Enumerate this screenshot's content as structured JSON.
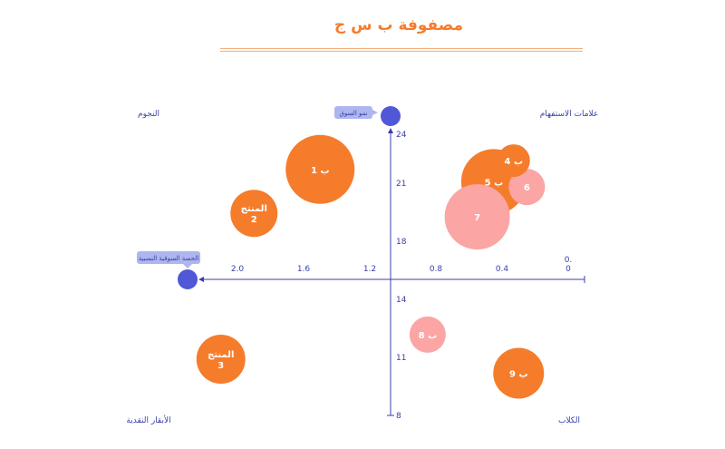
{
  "title": "مصفوفة ب س ج",
  "quadrants": {
    "top_left": "النجوم",
    "top_right": "علامات الاستفهام",
    "bottom_left": "الأبقار النقدية",
    "bottom_right": "الكلاب"
  },
  "colors": {
    "primary": "#F57C2B",
    "secondary": "#FBA5A5",
    "axis": "#3A3FA8",
    "marker": "#5058D8",
    "callout_bg": "#AEB6EE",
    "title": "#F57C2B"
  },
  "chart_data": {
    "type": "bubble",
    "title": "مصفوفة ب س ج",
    "x_axis": {
      "range": [
        0,
        2.4
      ],
      "reversed": true,
      "ticks": [
        {
          "value": 2.0,
          "label": "2.0"
        },
        {
          "value": 1.6,
          "label": "1.6"
        },
        {
          "value": 1.2,
          "label": "1.2"
        },
        {
          "value": 0.8,
          "label": "0.8"
        },
        {
          "value": 0.4,
          "label": "0.4"
        },
        {
          "value": 0.0,
          "label": "0.\n0"
        }
      ],
      "end_label": "الحصة السوقية النسبية",
      "end_value": 2.4
    },
    "y_axis": {
      "range": [
        8,
        24
      ],
      "ticks": [
        "24",
        "21",
        "18",
        "14",
        "11",
        "8"
      ],
      "end_label": "نمو السوق",
      "end_value": 25
    },
    "series": [
      {
        "color": "#F57C2B",
        "points": [
          {
            "label": "ب 1",
            "x": 1.5,
            "y": 22.0,
            "size": 38
          },
          {
            "label": "المنتج\n2",
            "x": 1.9,
            "y": 19.5,
            "size": 26
          },
          {
            "label": "المنتج\n3",
            "x": 2.1,
            "y": 11.2,
            "size": 27
          },
          {
            "label": "ب 4",
            "x": 0.33,
            "y": 22.5,
            "size": 18
          },
          {
            "label": "ب 5",
            "x": 0.45,
            "y": 21.3,
            "size": 36
          },
          {
            "label": "ب 9",
            "x": 0.3,
            "y": 10.4,
            "size": 28
          }
        ]
      },
      {
        "color": "#FBA5A5",
        "points": [
          {
            "label": "6",
            "x": 0.25,
            "y": 21.0,
            "size": 20
          },
          {
            "label": "7",
            "x": 0.55,
            "y": 19.3,
            "size": 36
          },
          {
            "label": "ب 8",
            "x": 0.85,
            "y": 12.6,
            "size": 20
          }
        ]
      }
    ]
  }
}
